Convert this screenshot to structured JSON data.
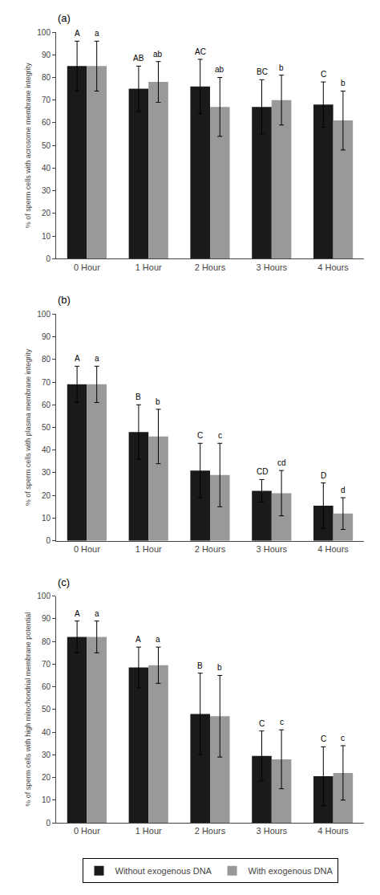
{
  "chart_data": [
    {
      "type": "bar",
      "annotation": "(a)",
      "ylabel": "% of sperm cells with acrosome membrane integrity",
      "categories": [
        "0 Hour",
        "1 Hour",
        "2 Hours",
        "3 Hours",
        "4 Hours"
      ],
      "series": [
        {
          "name": "Without exogenous DNA",
          "color": "#1a1a1a",
          "values": [
            85,
            75,
            76,
            67,
            68
          ],
          "errors": [
            11,
            10,
            12,
            12,
            10
          ],
          "labels": [
            "A",
            "AB",
            "AC",
            "BC",
            "C"
          ]
        },
        {
          "name": "With exogenous DNA",
          "color": "#999999",
          "values": [
            85,
            78,
            67,
            70,
            61
          ],
          "errors": [
            11,
            9,
            13,
            11,
            13
          ],
          "labels": [
            "a",
            "ab",
            "ab",
            "b",
            "b"
          ]
        }
      ],
      "ylim": [
        0,
        100
      ],
      "yticks": [
        0,
        10,
        20,
        30,
        40,
        50,
        60,
        70,
        80,
        90,
        100
      ],
      "grid": false
    },
    {
      "type": "bar",
      "annotation": "(b)",
      "ylabel": "% of sperm cells with plasma membrane integrity",
      "categories": [
        "0 Hour",
        "1 Hour",
        "2 Hours",
        "3 Hours",
        "4 Hours"
      ],
      "series": [
        {
          "name": "Without exogenous DNA",
          "color": "#1a1a1a",
          "values": [
            69,
            48,
            31,
            22,
            15.5
          ],
          "errors": [
            8,
            12,
            12,
            5,
            10
          ],
          "labels": [
            "A",
            "B",
            "C",
            "CD",
            "D"
          ]
        },
        {
          "name": "With exogenous DNA",
          "color": "#999999",
          "values": [
            69,
            46,
            29,
            21,
            12
          ],
          "errors": [
            8,
            12,
            14,
            10,
            7
          ],
          "labels": [
            "a",
            "b",
            "c",
            "cd",
            "d"
          ]
        }
      ],
      "ylim": [
        0,
        100
      ],
      "yticks": [
        0,
        10,
        20,
        30,
        40,
        50,
        60,
        70,
        80,
        90,
        100
      ],
      "grid": false
    },
    {
      "type": "bar",
      "annotation": "(c)",
      "ylabel": "% of sperm cells with high mitochondrial membrane potential",
      "categories": [
        "0 Hour",
        "1 Hour",
        "2 Hours",
        "3 Hours",
        "4 Hours"
      ],
      "series": [
        {
          "name": "Without exogenous DNA",
          "color": "#1a1a1a",
          "values": [
            82,
            68.5,
            48,
            29.5,
            20.5
          ],
          "errors": [
            7,
            9,
            18,
            11,
            13
          ],
          "labels": [
            "A",
            "A",
            "B",
            "C",
            "C"
          ]
        },
        {
          "name": "With exogenous DNA",
          "color": "#999999",
          "values": [
            82,
            69.5,
            47,
            28,
            22
          ],
          "errors": [
            7,
            8,
            18,
            13,
            12
          ],
          "labels": [
            "a",
            "a",
            "b",
            "c",
            "c"
          ]
        }
      ],
      "ylim": [
        0,
        100
      ],
      "yticks": [
        0,
        10,
        20,
        30,
        40,
        50,
        60,
        70,
        80,
        90,
        100
      ],
      "grid": false,
      "legend": "bottom"
    }
  ]
}
